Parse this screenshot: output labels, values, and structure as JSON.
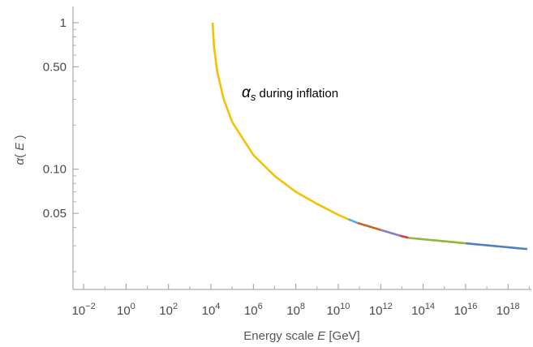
{
  "chart_data": {
    "type": "line",
    "x_scale": "log",
    "y_scale": "log",
    "xlabel": {
      "prefix": "Energy scale ",
      "var": "E",
      "suffix": " [GeV]"
    },
    "ylabel": {
      "alpha": "α",
      "open": "( ",
      "var": "E",
      "close": " )"
    },
    "xlim": [
      0.01,
      1e+19
    ],
    "ylim": [
      0.02,
      1
    ],
    "x_ticks": [
      {
        "base": "10",
        "exp": "−2",
        "value": 0.01
      },
      {
        "base": "10",
        "exp": "0",
        "value": 1
      },
      {
        "base": "10",
        "exp": "2",
        "value": 100
      },
      {
        "base": "10",
        "exp": "4",
        "value": 10000
      },
      {
        "base": "10",
        "exp": "6",
        "value": 1000000.0
      },
      {
        "base": "10",
        "exp": "8",
        "value": 100000000.0
      },
      {
        "base": "10",
        "exp": "10",
        "value": 10000000000.0
      },
      {
        "base": "10",
        "exp": "12",
        "value": 1000000000000.0
      },
      {
        "base": "10",
        "exp": "14",
        "value": 100000000000000.0
      },
      {
        "base": "10",
        "exp": "16",
        "value": 1e+16
      },
      {
        "base": "10",
        "exp": "18",
        "value": 1e+18
      }
    ],
    "y_ticks": [
      {
        "label": "1",
        "value": 1
      },
      {
        "label": "0.50",
        "value": 0.5
      },
      {
        "label": "0.10",
        "value": 0.1
      },
      {
        "label": "0.05",
        "value": 0.05
      }
    ],
    "annotation": {
      "symbol": "α",
      "subscript": "s",
      "text": " during inflation",
      "x": 500000.0,
      "y": 0.3
    },
    "series": [
      {
        "color": "#f5c100",
        "x": [
          12000,
          14000,
          20000,
          40000,
          100000,
          1000000,
          10000000,
          100000000,
          1000000000,
          10000000000,
          30000000000
        ],
        "y": [
          1.0,
          0.68,
          0.46,
          0.3,
          0.21,
          0.125,
          0.09,
          0.07,
          0.058,
          0.0488,
          0.0455
        ]
      },
      {
        "color": "#5aa9e6",
        "x": [
          30000000000,
          80000000000
        ],
        "y": [
          0.0455,
          0.043
        ]
      },
      {
        "color": "#c8641e",
        "x": [
          80000000000,
          1000000000000
        ],
        "y": [
          0.043,
          0.0385
        ]
      },
      {
        "color": "#8c7bc6",
        "x": [
          1000000000000,
          8000000000000
        ],
        "y": [
          0.0385,
          0.0352
        ]
      },
      {
        "color": "#d63a3a",
        "x": [
          8000000000000,
          20000000000000
        ],
        "y": [
          0.0352,
          0.034
        ]
      },
      {
        "color": "#8fb83a",
        "x": [
          20000000000000,
          1e+16
        ],
        "y": [
          0.034,
          0.0312
        ]
      },
      {
        "color": "#4f7fbf",
        "x": [
          1e+16,
          8e+18
        ],
        "y": [
          0.0312,
          0.0285
        ]
      }
    ]
  }
}
